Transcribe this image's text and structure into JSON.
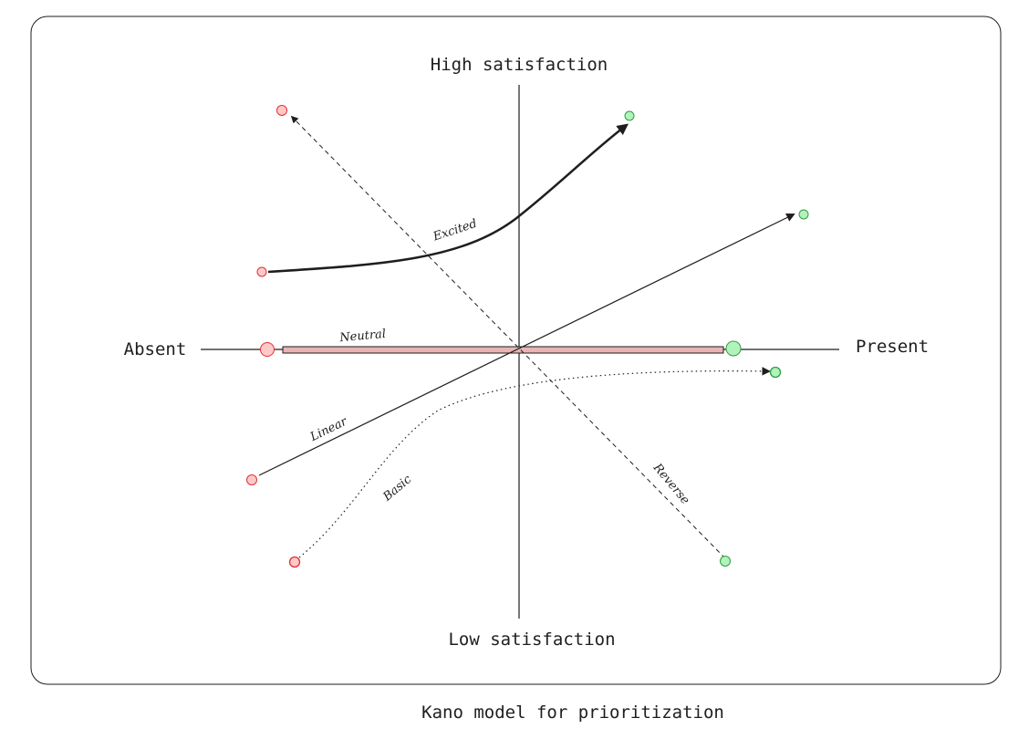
{
  "diagram": {
    "caption": "Kano model for prioritization",
    "axes": {
      "y_top": "High satisfaction",
      "y_bottom": "Low satisfaction",
      "x_left": "Absent",
      "x_right": "Present"
    },
    "curves": {
      "excited": "Excited",
      "neutral": "Neutral",
      "linear": "Linear",
      "basic": "Basic",
      "reverse": "Reverse"
    },
    "colors": {
      "frame": "#1e1e1e",
      "absent_point_fill": "#ffc9c9",
      "absent_point_stroke": "#e03131",
      "present_point_fill": "#b2f2bb",
      "present_point_stroke": "#2f9e44",
      "neutral_bar_fill": "#e8b4b4"
    }
  }
}
